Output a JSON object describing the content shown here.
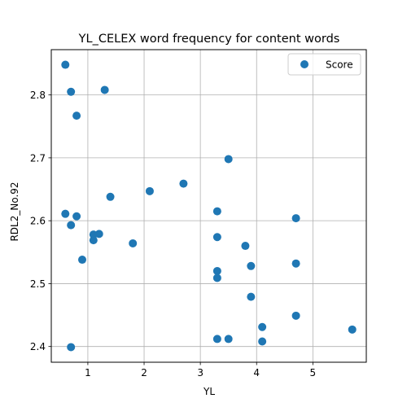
{
  "chart_data": {
    "type": "scatter",
    "title": "YL_CELEX word frequency for content words",
    "xlabel": "YL",
    "ylabel": "RDL2_No.92",
    "xlim": [
      0.35,
      5.95
    ],
    "ylim": [
      2.375,
      2.872
    ],
    "xticks": [
      1,
      2,
      3,
      4,
      5
    ],
    "yticks": [
      2.4,
      2.5,
      2.6,
      2.7,
      2.8
    ],
    "grid": true,
    "legend_position": "top-right",
    "series": [
      {
        "name": "Score",
        "color": "#1f77b4",
        "points": [
          {
            "x": 0.6,
            "y": 2.848
          },
          {
            "x": 0.7,
            "y": 2.805
          },
          {
            "x": 1.3,
            "y": 2.808
          },
          {
            "x": 0.8,
            "y": 2.767
          },
          {
            "x": 3.5,
            "y": 2.698
          },
          {
            "x": 2.7,
            "y": 2.659
          },
          {
            "x": 2.1,
            "y": 2.647
          },
          {
            "x": 1.4,
            "y": 2.638
          },
          {
            "x": 3.3,
            "y": 2.615
          },
          {
            "x": 0.6,
            "y": 2.611
          },
          {
            "x": 0.8,
            "y": 2.607
          },
          {
            "x": 4.7,
            "y": 2.604
          },
          {
            "x": 0.7,
            "y": 2.593
          },
          {
            "x": 1.1,
            "y": 2.578
          },
          {
            "x": 1.2,
            "y": 2.579
          },
          {
            "x": 3.3,
            "y": 2.574
          },
          {
            "x": 1.1,
            "y": 2.569
          },
          {
            "x": 1.8,
            "y": 2.564
          },
          {
            "x": 3.8,
            "y": 2.56
          },
          {
            "x": 0.9,
            "y": 2.538
          },
          {
            "x": 4.7,
            "y": 2.532
          },
          {
            "x": 3.9,
            "y": 2.528
          },
          {
            "x": 3.3,
            "y": 2.52
          },
          {
            "x": 3.3,
            "y": 2.509
          },
          {
            "x": 3.9,
            "y": 2.479
          },
          {
            "x": 4.7,
            "y": 2.449
          },
          {
            "x": 4.1,
            "y": 2.431
          },
          {
            "x": 5.7,
            "y": 2.427
          },
          {
            "x": 3.3,
            "y": 2.412
          },
          {
            "x": 3.5,
            "y": 2.412
          },
          {
            "x": 4.1,
            "y": 2.408
          },
          {
            "x": 0.7,
            "y": 2.399
          }
        ]
      }
    ]
  }
}
